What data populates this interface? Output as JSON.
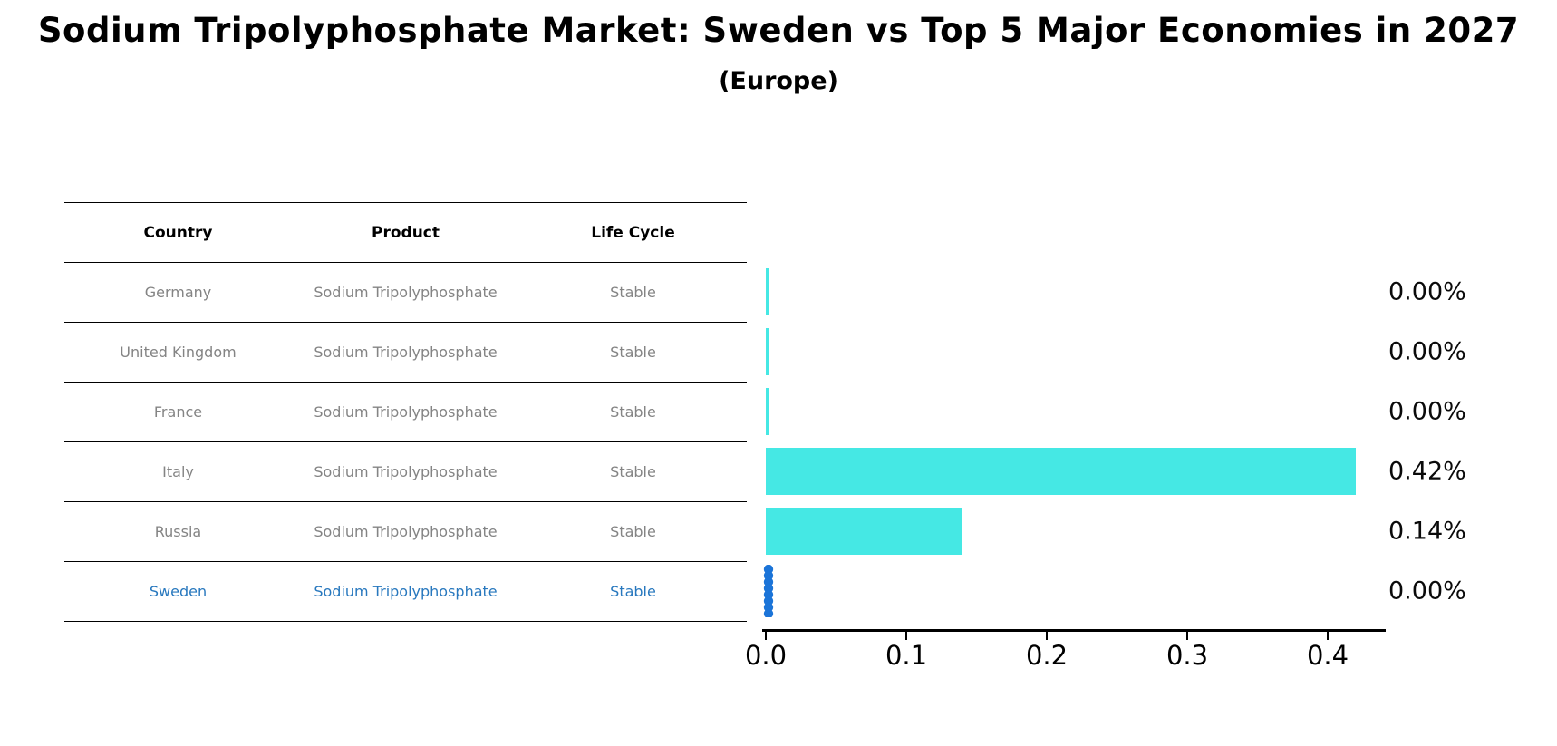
{
  "title": "Sodium Tripolyphosphate Market: Sweden vs Top 5 Major Economies in 2027",
  "subtitle": "(Europe)",
  "table": {
    "headers": [
      "Country",
      "Product",
      "Life Cycle"
    ],
    "rows": [
      {
        "country": "Germany",
        "product": "Sodium Tripolyphosphate",
        "life_cycle": "Stable",
        "highlight": false
      },
      {
        "country": "United Kingdom",
        "product": "Sodium Tripolyphosphate",
        "life_cycle": "Stable",
        "highlight": false
      },
      {
        "country": "France",
        "product": "Sodium Tripolyphosphate",
        "life_cycle": "Stable",
        "highlight": false
      },
      {
        "country": "Italy",
        "product": "Sodium Tripolyphosphate",
        "life_cycle": "Stable",
        "highlight": false
      },
      {
        "country": "Russia",
        "product": "Sodium Tripolyphosphate",
        "life_cycle": "Stable",
        "highlight": false
      },
      {
        "country": "Sweden",
        "product": "Sodium Tripolyphosphate",
        "life_cycle": "Stable",
        "highlight": true
      }
    ]
  },
  "chart_data": {
    "type": "bar",
    "orientation": "horizontal",
    "categories": [
      "Germany",
      "United Kingdom",
      "France",
      "Italy",
      "Russia",
      "Sweden"
    ],
    "values": [
      0.0,
      0.0,
      0.0,
      0.42,
      0.14,
      0.0
    ],
    "value_labels": [
      "0.00%",
      "0.00%",
      "0.00%",
      "0.42%",
      "0.14%",
      "0.00%"
    ],
    "x_tick_labels": [
      "0.0",
      "0.1",
      "0.2",
      "0.3",
      "0.4"
    ],
    "x_tick_values": [
      0.0,
      0.1,
      0.2,
      0.3,
      0.4
    ],
    "xlim": [
      0,
      0.44
    ],
    "title": "Sodium Tripolyphosphate Market: Sweden vs Top 5 Major Economies in 2027",
    "subtitle": "(Europe)",
    "xlabel": "",
    "ylabel": "",
    "grid": false,
    "legend": false,
    "bar_color": "#45E8E4",
    "highlight_marker_color": "#1B74D8",
    "highlight_index": 5
  },
  "colors": {
    "bar_cyan": "#45E8E4",
    "sweden_marker_blue": "#1B74D8",
    "sweden_text_blue": "#2878BE",
    "table_text_gray": "#848484",
    "axis_black": "#000000"
  }
}
